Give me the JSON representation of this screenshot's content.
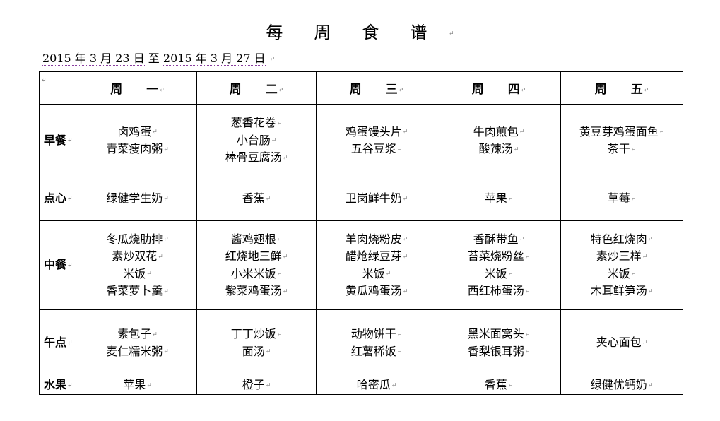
{
  "title": [
    "每",
    "周",
    "食",
    "谱"
  ],
  "date_range": {
    "start": "2015 年 3 月 23 日",
    "sep": "至",
    "end": "2015 年 3 月 27 日"
  },
  "days": [
    "周　　一",
    "周　　二",
    "周　　三",
    "周　　四",
    "周　　五"
  ],
  "meals": [
    {
      "label": "早餐",
      "cells": [
        [
          "卤鸡蛋",
          "青菜瘦肉粥"
        ],
        [
          "葱香花卷",
          "小台肠",
          "棒骨豆腐汤"
        ],
        [
          "鸡蛋馒头片",
          "五谷豆浆"
        ],
        [
          "牛肉煎包",
          "酸辣汤"
        ],
        [
          "黄豆芽鸡蛋面鱼",
          "茶干"
        ]
      ]
    },
    {
      "label": "点心",
      "cells": [
        [
          "绿健学生奶"
        ],
        [
          "香蕉"
        ],
        [
          "卫岗鲜牛奶"
        ],
        [
          "苹果"
        ],
        [
          "草莓"
        ]
      ]
    },
    {
      "label": "中餐",
      "cells": [
        [
          "冬瓜烧肋排",
          "素炒双花",
          "米饭",
          "香菜萝卜羹"
        ],
        [
          "酱鸡翅根",
          "红烧地三鲜",
          "小米米饭",
          "紫菜鸡蛋汤"
        ],
        [
          "羊肉烧粉皮",
          "醋炝绿豆芽",
          "米饭",
          "黄瓜鸡蛋汤"
        ],
        [
          "香酥带鱼",
          "苔菜烧粉丝",
          "米饭",
          "西红柿蛋汤"
        ],
        [
          "特色红烧肉",
          "素炒三样",
          "米饭",
          "木耳鲜笋汤"
        ]
      ]
    },
    {
      "label": "午点",
      "cells": [
        [
          "素包子",
          "麦仁糯米粥"
        ],
        [
          "丁丁炒饭",
          "面汤"
        ],
        [
          "动物饼干",
          "红薯稀饭"
        ],
        [
          "黑米面窝头",
          "香梨银耳粥"
        ],
        [
          "夹心面包"
        ]
      ]
    },
    {
      "label": "水果",
      "cells": [
        [
          "苹果"
        ],
        [
          "橙子"
        ],
        [
          "哈密瓜"
        ],
        [
          "香蕉"
        ],
        [
          "绿健优钙奶"
        ]
      ]
    }
  ]
}
